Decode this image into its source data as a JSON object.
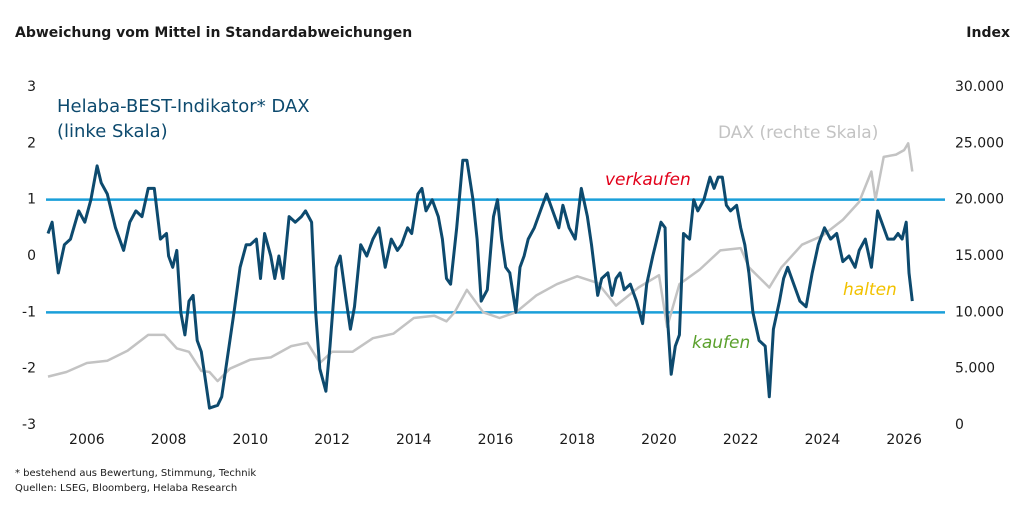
{
  "chart_data": {
    "type": "line",
    "title": "Abweichung vom Mittel in Standardabweichungen",
    "y2_title": "Index",
    "xlim": [
      2005,
      2027
    ],
    "xticks": [
      2006,
      2008,
      2010,
      2012,
      2014,
      2016,
      2018,
      2020,
      2022,
      2024,
      2026
    ],
    "ylim": [
      -3,
      3
    ],
    "yticks": [
      -3,
      -2,
      -1,
      0,
      1,
      2,
      3
    ],
    "y2lim": [
      0,
      30000
    ],
    "y2ticks": [
      0,
      {
        "value": 5000,
        "label": "5.000"
      },
      {
        "value": 10000,
        "label": "10.000"
      },
      {
        "value": 15000,
        "label": "15.000"
      },
      {
        "value": 20000,
        "label": "20.000"
      },
      {
        "value": 25000,
        "label": "25.000"
      },
      {
        "value": 30000,
        "label": "30.000"
      }
    ],
    "reference_lines": {
      "values": [
        1,
        -1
      ],
      "color": "#1a9fd9"
    },
    "series": [
      {
        "name": "Helaba-BEST-Indikator* DAX (linke Skala)",
        "color": "#0d4a6e",
        "x": [
          2005.05,
          2005.15,
          2005.3,
          2005.45,
          2005.6,
          2005.8,
          2005.95,
          2006.1,
          2006.25,
          2006.35,
          2006.5,
          2006.7,
          2006.9,
          2007.05,
          2007.2,
          2007.35,
          2007.5,
          2007.65,
          2007.8,
          2007.95,
          2008.0,
          2008.1,
          2008.2,
          2008.3,
          2008.4,
          2008.5,
          2008.6,
          2008.7,
          2008.8,
          2008.9,
          2009.0,
          2009.2,
          2009.3,
          2009.4,
          2009.6,
          2009.75,
          2009.9,
          2010.0,
          2010.15,
          2010.25,
          2010.35,
          2010.5,
          2010.6,
          2010.7,
          2010.8,
          2010.95,
          2011.1,
          2011.25,
          2011.35,
          2011.5,
          2011.6,
          2011.7,
          2011.85,
          2011.95,
          2012.1,
          2012.2,
          2012.35,
          2012.45,
          2012.55,
          2012.7,
          2012.85,
          2013.0,
          2013.15,
          2013.3,
          2013.45,
          2013.6,
          2013.7,
          2013.85,
          2013.95,
          2014.1,
          2014.2,
          2014.3,
          2014.45,
          2014.6,
          2014.7,
          2014.8,
          2014.9,
          2015.05,
          2015.2,
          2015.3,
          2015.45,
          2015.55,
          2015.65,
          2015.8,
          2015.95,
          2016.05,
          2016.15,
          2016.25,
          2016.35,
          2016.5,
          2016.6,
          2016.7,
          2016.8,
          2016.95,
          2017.1,
          2017.25,
          2017.4,
          2017.55,
          2017.65,
          2017.8,
          2017.95,
          2018.1,
          2018.25,
          2018.35,
          2018.5,
          2018.6,
          2018.75,
          2018.85,
          2018.95,
          2019.05,
          2019.15,
          2019.3,
          2019.45,
          2019.6,
          2019.7,
          2019.85,
          2019.95,
          2020.05,
          2020.15,
          2020.2,
          2020.3,
          2020.4,
          2020.5,
          2020.6,
          2020.75,
          2020.85,
          2020.95,
          2021.1,
          2021.25,
          2021.35,
          2021.45,
          2021.55,
          2021.65,
          2021.75,
          2021.9,
          2022.0,
          2022.1,
          2022.2,
          2022.3,
          2022.45,
          2022.6,
          2022.7,
          2022.8,
          2022.95,
          2023.05,
          2023.15,
          2023.3,
          2023.45,
          2023.6,
          2023.75,
          2023.9,
          2024.05,
          2024.2,
          2024.35,
          2024.5,
          2024.65,
          2024.8,
          2024.9,
          2025.05,
          2025.2,
          2025.35,
          2025.5,
          2025.6,
          2025.75,
          2025.85,
          2025.95,
          2026.05,
          2026.12,
          2026.2
        ],
        "values": [
          0.4,
          0.6,
          -0.3,
          0.2,
          0.3,
          0.8,
          0.6,
          1.0,
          1.6,
          1.3,
          1.1,
          0.5,
          0.1,
          0.6,
          0.8,
          0.7,
          1.2,
          1.2,
          0.3,
          0.4,
          0.0,
          -0.2,
          0.1,
          -1.0,
          -1.4,
          -0.8,
          -0.7,
          -1.5,
          -1.7,
          -2.2,
          -2.7,
          -2.65,
          -2.5,
          -2.0,
          -1.0,
          -0.2,
          0.2,
          0.2,
          0.3,
          -0.4,
          0.4,
          0.0,
          -0.4,
          0.0,
          -0.4,
          0.7,
          0.6,
          0.7,
          0.8,
          0.6,
          -1.0,
          -2.0,
          -2.4,
          -1.6,
          -0.2,
          0.0,
          -0.8,
          -1.3,
          -0.9,
          0.2,
          0.0,
          0.3,
          0.5,
          -0.2,
          0.3,
          0.1,
          0.2,
          0.5,
          0.4,
          1.1,
          1.2,
          0.8,
          1.0,
          0.7,
          0.3,
          -0.4,
          -0.5,
          0.5,
          1.7,
          1.7,
          1.0,
          0.3,
          -0.8,
          -0.6,
          0.7,
          1.0,
          0.3,
          -0.2,
          -0.3,
          -1.0,
          -0.2,
          0.0,
          0.3,
          0.5,
          0.8,
          1.1,
          0.8,
          0.5,
          0.9,
          0.5,
          0.3,
          1.2,
          0.7,
          0.2,
          -0.7,
          -0.4,
          -0.3,
          -0.7,
          -0.4,
          -0.3,
          -0.6,
          -0.5,
          -0.8,
          -1.2,
          -0.5,
          0.0,
          0.3,
          0.6,
          0.5,
          -1.0,
          -2.1,
          -1.6,
          -1.4,
          0.4,
          0.3,
          1.0,
          0.8,
          1.0,
          1.4,
          1.2,
          1.4,
          1.4,
          0.9,
          0.8,
          0.9,
          0.5,
          0.2,
          -0.3,
          -1.0,
          -1.5,
          -1.6,
          -2.5,
          -1.3,
          -0.8,
          -0.4,
          -0.2,
          -0.5,
          -0.8,
          -0.9,
          -0.3,
          0.2,
          0.5,
          0.3,
          0.4,
          -0.1,
          0.0,
          -0.2,
          0.1,
          0.3,
          -0.2,
          0.8,
          0.5,
          0.3,
          0.3,
          0.4,
          0.3,
          0.6,
          -0.3,
          -0.8
        ]
      },
      {
        "name": "DAX (rechte Skala)",
        "color": "#c3c3c3",
        "axis": "y2",
        "x": [
          2005.05,
          2005.5,
          2006.0,
          2006.5,
          2007.0,
          2007.5,
          2007.9,
          2008.2,
          2008.5,
          2008.8,
          2009.0,
          2009.2,
          2009.5,
          2010.0,
          2010.5,
          2011.0,
          2011.4,
          2011.7,
          2012.0,
          2012.5,
          2013.0,
          2013.5,
          2014.0,
          2014.5,
          2014.8,
          2015.0,
          2015.3,
          2015.7,
          2016.1,
          2016.5,
          2017.0,
          2017.5,
          2018.0,
          2018.5,
          2018.95,
          2019.5,
          2020.0,
          2020.2,
          2020.5,
          2021.0,
          2021.5,
          2022.0,
          2022.2,
          2022.7,
          2023.0,
          2023.5,
          2024.0,
          2024.5,
          2024.9,
          2025.2,
          2025.3,
          2025.5,
          2025.8,
          2026.0,
          2026.1,
          2026.2
        ],
        "values": [
          4300,
          4700,
          5500,
          5700,
          6600,
          8000,
          8000,
          6800,
          6500,
          4800,
          4700,
          3900,
          5000,
          5800,
          6000,
          7000,
          7300,
          5500,
          6500,
          6500,
          7700,
          8100,
          9500,
          9700,
          9200,
          10000,
          12000,
          10000,
          9500,
          10000,
          11500,
          12500,
          13200,
          12600,
          10600,
          12200,
          13300,
          8700,
          12500,
          13800,
          15500,
          15700,
          14000,
          12200,
          14000,
          16000,
          16800,
          18200,
          19800,
          22500,
          20000,
          23800,
          24000,
          24400,
          25000,
          22500
        ]
      }
    ],
    "annotations": [
      {
        "text": "verkaufen",
        "color": "#e2001a"
      },
      {
        "text": "halten",
        "color": "#f2c200"
      },
      {
        "text": "kaufen",
        "color": "#5aa02c"
      }
    ],
    "notes": [
      "* bestehend aus Bewertung, Stimmung, Technik",
      "Quellen: LSEG, Bloomberg, Helaba Research"
    ]
  }
}
